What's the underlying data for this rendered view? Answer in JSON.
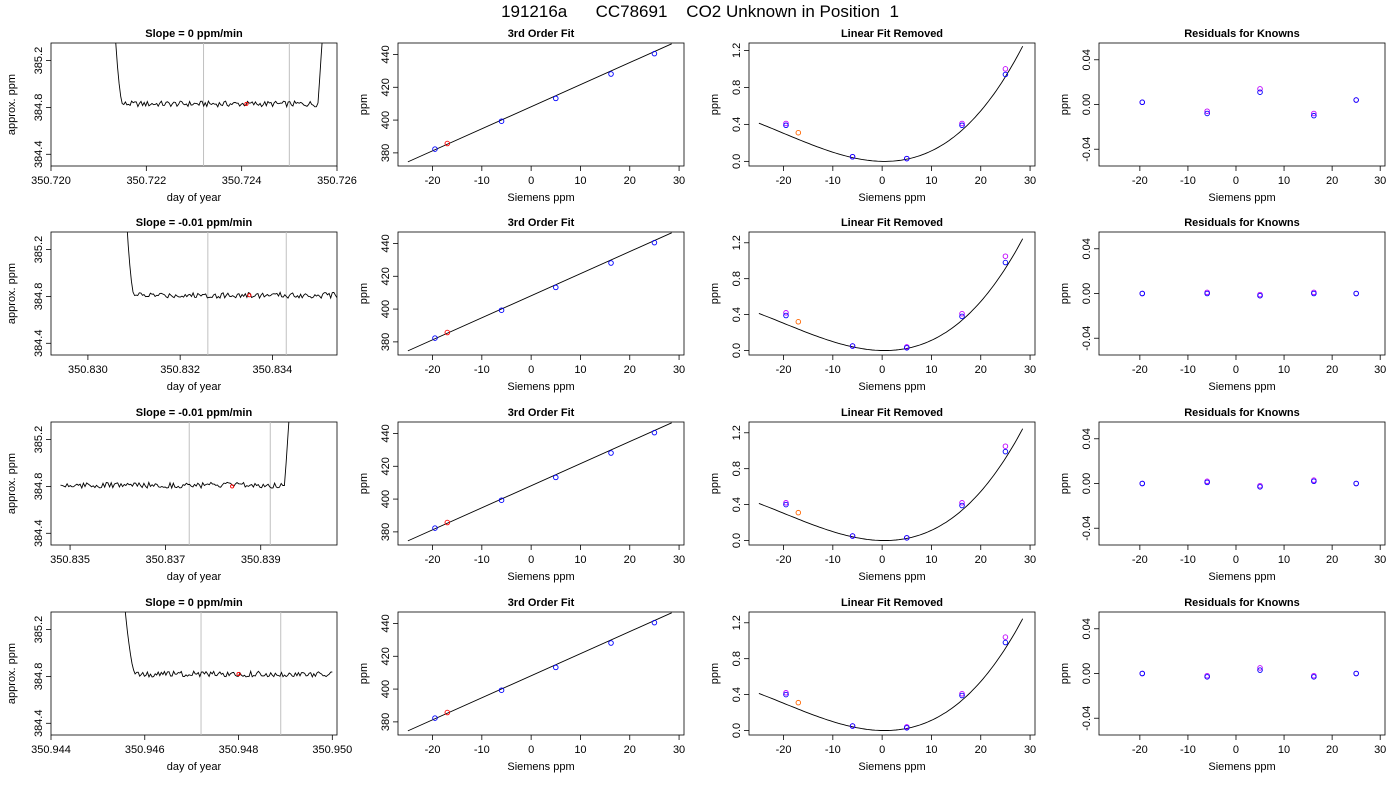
{
  "title": "191216a      CC78691    CO2 Unknown in Position  1",
  "colors": {
    "known_fit": "#0000ff",
    "known_raw": "#c000ff",
    "unknown": "#ff0000",
    "unknown_orange": "#ff6600",
    "window_lines": "#c0c0c0",
    "trace": "#000000"
  },
  "chart_data": [
    {
      "type": "line",
      "title": "Slope =  0  ppm/min",
      "xlabel": "day of year",
      "ylabel": "approx. ppm",
      "xlim": [
        350.72,
        350.726
      ],
      "ylim": [
        384.3,
        385.35
      ],
      "xticks": [
        350.72,
        350.722,
        350.724,
        350.726
      ],
      "xtick_labels": [
        "350.720",
        "350.722",
        "350.724",
        "350.726"
      ],
      "yticks": [
        384.4,
        384.8,
        385.2
      ],
      "ytick_labels": [
        "384.4",
        "384.8",
        "385.2"
      ],
      "trace_start": 350.7211,
      "trace_end": 350.7257,
      "drop_from": 350.7213,
      "drop_to": 350.7215,
      "rise_from": 350.7256,
      "rise_to": 350.7258,
      "baseline": 384.83,
      "window": [
        350.7232,
        350.725
      ],
      "marker": {
        "x": 350.7241,
        "y": 384.83
      }
    },
    {
      "type": "scatter",
      "title": "3rd Order Fit",
      "xlabel": "Siemens ppm",
      "ylabel": "ppm",
      "xlim": [
        -27,
        31
      ],
      "ylim": [
        372,
        447
      ],
      "xticks": [
        -20,
        -10,
        0,
        10,
        20,
        30
      ],
      "xtick_labels": [
        "-20",
        "-10",
        "0",
        "10",
        "20",
        "30"
      ],
      "yticks": [
        380,
        400,
        420,
        440
      ],
      "ytick_labels": [
        "380",
        "400",
        "420",
        "440"
      ],
      "line": {
        "x": [
          -25,
          28.5
        ],
        "y": [
          374.5,
          446.5
        ]
      },
      "known_points": [
        {
          "x": -19.5,
          "y": 382.3
        },
        {
          "x": -6,
          "y": 399.3
        },
        {
          "x": 5,
          "y": 413.2
        },
        {
          "x": 16.2,
          "y": 428.1
        },
        {
          "x": 25,
          "y": 440.5
        }
      ],
      "unknown_points": [
        {
          "x": -17,
          "y": 385.7
        }
      ]
    },
    {
      "type": "line",
      "title": "Linear Fit Removed",
      "xlabel": "Siemens ppm",
      "ylabel": "ppm",
      "xlim": [
        -27,
        31
      ],
      "ylim": [
        -0.05,
        1.28
      ],
      "xticks": [
        -20,
        -10,
        0,
        10,
        20,
        30
      ],
      "xtick_labels": [
        "-20",
        "-10",
        "0",
        "10",
        "20",
        "30"
      ],
      "yticks": [
        0,
        0.4,
        0.8,
        1.2
      ],
      "ytick_labels": [
        "0.0",
        "0.4",
        "0.8",
        "1.2"
      ],
      "curve_coeffs": [
        0,
        -0.00107,
        0.001063,
        1.78e-05
      ],
      "curve_range": [
        -25,
        28.5
      ],
      "known_raw": [
        {
          "x": -19.5,
          "y": 0.41
        },
        {
          "x": -6,
          "y": 0.05
        },
        {
          "x": 5,
          "y": 0.03
        },
        {
          "x": 16.2,
          "y": 0.41
        },
        {
          "x": 25,
          "y": 1.0
        }
      ],
      "known_fit": [
        {
          "x": -19.5,
          "y": 0.39
        },
        {
          "x": -6,
          "y": 0.05
        },
        {
          "x": 5,
          "y": 0.03
        },
        {
          "x": 16.2,
          "y": 0.39
        },
        {
          "x": 25,
          "y": 0.94
        }
      ],
      "unknown_points": [
        {
          "x": -17,
          "y": 0.31
        }
      ]
    },
    {
      "type": "scatter",
      "title": "Residuals for Knowns",
      "xlabel": "Siemens ppm",
      "ylabel": "ppm",
      "xlim": [
        -28.5,
        31
      ],
      "ylim": [
        -0.055,
        0.055
      ],
      "xticks": [
        -20,
        -10,
        0,
        10,
        20,
        30
      ],
      "xtick_labels": [
        "-20",
        "-10",
        "0",
        "10",
        "20",
        "30"
      ],
      "yticks": [
        -0.04,
        0,
        0.04
      ],
      "ytick_labels": [
        "-0.04",
        "0.00",
        "0.04"
      ],
      "known_raw": [
        {
          "x": -19.5,
          "y": 0.002
        },
        {
          "x": -6,
          "y": -0.006
        },
        {
          "x": 5,
          "y": 0.014
        },
        {
          "x": 16.2,
          "y": -0.008
        },
        {
          "x": 25,
          "y": 0.004
        }
      ],
      "known_fit": [
        {
          "x": -19.5,
          "y": 0.002
        },
        {
          "x": -6,
          "y": -0.008
        },
        {
          "x": 5,
          "y": 0.011
        },
        {
          "x": 16.2,
          "y": -0.01
        },
        {
          "x": 25,
          "y": 0.004
        }
      ]
    },
    {
      "type": "line",
      "title": "Slope =  -0.01  ppm/min",
      "xlabel": "day of year",
      "ylabel": "approx. ppm",
      "xlim": [
        350.8292,
        350.8354
      ],
      "ylim": [
        384.3,
        385.35
      ],
      "xticks": [
        350.83,
        350.832,
        350.834
      ],
      "xtick_labels": [
        "350.830",
        "350.832",
        "350.834"
      ],
      "yticks": [
        384.4,
        384.8,
        385.2
      ],
      "ytick_labels": [
        "384.4",
        "384.8",
        "385.2"
      ],
      "trace_start": 350.8306,
      "trace_end": 350.8354,
      "drop_from": 350.8308,
      "drop_to": 350.831,
      "rise_from": 350.8354,
      "rise_to": 350.8354,
      "baseline": 384.81,
      "window": [
        350.8326,
        350.8343
      ],
      "marker": {
        "x": 350.8335,
        "y": 384.81
      }
    },
    {
      "type": "scatter",
      "title": "3rd Order Fit",
      "xlabel": "Siemens ppm",
      "ylabel": "ppm",
      "xlim": [
        -27,
        31
      ],
      "ylim": [
        372,
        447
      ],
      "xticks": [
        -20,
        -10,
        0,
        10,
        20,
        30
      ],
      "xtick_labels": [
        "-20",
        "-10",
        "0",
        "10",
        "20",
        "30"
      ],
      "yticks": [
        380,
        400,
        420,
        440
      ],
      "ytick_labels": [
        "380",
        "400",
        "420",
        "440"
      ],
      "line": {
        "x": [
          -25,
          28.5
        ],
        "y": [
          374.5,
          446.5
        ]
      },
      "known_points": [
        {
          "x": -19.5,
          "y": 382.3
        },
        {
          "x": -6,
          "y": 399.3
        },
        {
          "x": 5,
          "y": 413.2
        },
        {
          "x": 16.2,
          "y": 428.1
        },
        {
          "x": 25,
          "y": 440.5
        }
      ],
      "unknown_points": [
        {
          "x": -17,
          "y": 385.7
        }
      ]
    },
    {
      "type": "line",
      "title": "Linear Fit Removed",
      "xlabel": "Siemens ppm",
      "ylabel": "ppm",
      "xlim": [
        -27,
        31
      ],
      "ylim": [
        -0.05,
        1.32
      ],
      "xticks": [
        -20,
        -10,
        0,
        10,
        20,
        30
      ],
      "xtick_labels": [
        "-20",
        "-10",
        "0",
        "10",
        "20",
        "30"
      ],
      "yticks": [
        0,
        0.4,
        0.8,
        1.2
      ],
      "ytick_labels": [
        "0.0",
        "0.4",
        "0.8",
        "1.2"
      ],
      "curve_coeffs": [
        0,
        -0.00107,
        0.001063,
        1.78e-05
      ],
      "curve_range": [
        -25,
        28.5
      ],
      "known_raw": [
        {
          "x": -19.5,
          "y": 0.42
        },
        {
          "x": -6,
          "y": 0.05
        },
        {
          "x": 5,
          "y": 0.04
        },
        {
          "x": 16.2,
          "y": 0.41
        },
        {
          "x": 25,
          "y": 1.05
        }
      ],
      "known_fit": [
        {
          "x": -19.5,
          "y": 0.39
        },
        {
          "x": -6,
          "y": 0.05
        },
        {
          "x": 5,
          "y": 0.03
        },
        {
          "x": 16.2,
          "y": 0.38
        },
        {
          "x": 25,
          "y": 0.98
        }
      ],
      "unknown_points": [
        {
          "x": -17,
          "y": 0.32
        }
      ]
    },
    {
      "type": "scatter",
      "title": "Residuals for Knowns",
      "xlabel": "Siemens ppm",
      "ylabel": "ppm",
      "xlim": [
        -28.5,
        31
      ],
      "ylim": [
        -0.055,
        0.055
      ],
      "xticks": [
        -20,
        -10,
        0,
        10,
        20,
        30
      ],
      "xtick_labels": [
        "-20",
        "-10",
        "0",
        "10",
        "20",
        "30"
      ],
      "yticks": [
        -0.04,
        0,
        0.04
      ],
      "ytick_labels": [
        "-0.04",
        "0.00",
        "0.04"
      ],
      "known_raw": [
        {
          "x": -19.5,
          "y": 0.0
        },
        {
          "x": -6,
          "y": 0.001
        },
        {
          "x": 5,
          "y": -0.001
        },
        {
          "x": 16.2,
          "y": 0.001
        },
        {
          "x": 25,
          "y": 0.0
        }
      ],
      "known_fit": [
        {
          "x": -19.5,
          "y": 0.0
        },
        {
          "x": -6,
          "y": 0.0
        },
        {
          "x": 5,
          "y": -0.002
        },
        {
          "x": 16.2,
          "y": 0.0
        },
        {
          "x": 25,
          "y": 0.0
        }
      ]
    },
    {
      "type": "line",
      "title": "Slope =  -0.01  ppm/min",
      "xlabel": "day of year",
      "ylabel": "approx. ppm",
      "xlim": [
        350.8346,
        350.8406
      ],
      "ylim": [
        384.3,
        385.35
      ],
      "xticks": [
        350.835,
        350.837,
        350.839
      ],
      "xtick_labels": [
        "350.835",
        "350.837",
        "350.839"
      ],
      "yticks": [
        384.4,
        384.8,
        385.2
      ],
      "ytick_labels": [
        "384.4",
        "384.8",
        "385.2"
      ],
      "trace_start": 350.8348,
      "trace_end": 350.8396,
      "drop_from": 350.8348,
      "drop_to": 350.8348,
      "rise_from": 350.8395,
      "rise_to": 350.8397,
      "baseline": 384.81,
      "window": [
        350.8375,
        350.8392
      ],
      "marker": {
        "x": 350.8384,
        "y": 384.8
      }
    },
    {
      "type": "scatter",
      "title": "3rd Order Fit",
      "xlabel": "Siemens ppm",
      "ylabel": "ppm",
      "xlim": [
        -27,
        31
      ],
      "ylim": [
        372,
        447
      ],
      "xticks": [
        -20,
        -10,
        0,
        10,
        20,
        30
      ],
      "xtick_labels": [
        "-20",
        "-10",
        "0",
        "10",
        "20",
        "30"
      ],
      "yticks": [
        380,
        400,
        420,
        440
      ],
      "ytick_labels": [
        "380",
        "400",
        "420",
        "440"
      ],
      "line": {
        "x": [
          -25,
          28.5
        ],
        "y": [
          374.5,
          446.5
        ]
      },
      "known_points": [
        {
          "x": -19.5,
          "y": 382.3
        },
        {
          "x": -6,
          "y": 399.3
        },
        {
          "x": 5,
          "y": 413.2
        },
        {
          "x": 16.2,
          "y": 428.1
        },
        {
          "x": 25,
          "y": 440.5
        }
      ],
      "unknown_points": [
        {
          "x": -17,
          "y": 385.7
        }
      ]
    },
    {
      "type": "line",
      "title": "Linear Fit Removed",
      "xlabel": "Siemens ppm",
      "ylabel": "ppm",
      "xlim": [
        -27,
        31
      ],
      "ylim": [
        -0.05,
        1.32
      ],
      "xticks": [
        -20,
        -10,
        0,
        10,
        20,
        30
      ],
      "xtick_labels": [
        "-20",
        "-10",
        "0",
        "10",
        "20",
        "30"
      ],
      "yticks": [
        0,
        0.4,
        0.8,
        1.2
      ],
      "ytick_labels": [
        "0.0",
        "0.4",
        "0.8",
        "1.2"
      ],
      "curve_coeffs": [
        0,
        -0.00107,
        0.001063,
        1.78e-05
      ],
      "curve_range": [
        -25,
        28.5
      ],
      "known_raw": [
        {
          "x": -19.5,
          "y": 0.42
        },
        {
          "x": -6,
          "y": 0.05
        },
        {
          "x": 5,
          "y": 0.03
        },
        {
          "x": 16.2,
          "y": 0.42
        },
        {
          "x": 25,
          "y": 1.05
        }
      ],
      "known_fit": [
        {
          "x": -19.5,
          "y": 0.4
        },
        {
          "x": -6,
          "y": 0.05
        },
        {
          "x": 5,
          "y": 0.03
        },
        {
          "x": 16.2,
          "y": 0.39
        },
        {
          "x": 25,
          "y": 0.99
        }
      ],
      "unknown_points": [
        {
          "x": -17,
          "y": 0.31
        }
      ]
    },
    {
      "type": "scatter",
      "title": "Residuals for Knowns",
      "xlabel": "Siemens ppm",
      "ylabel": "ppm",
      "xlim": [
        -28.5,
        31
      ],
      "ylim": [
        -0.055,
        0.055
      ],
      "xticks": [
        -20,
        -10,
        0,
        10,
        20,
        30
      ],
      "xtick_labels": [
        "-20",
        "-10",
        "0",
        "10",
        "20",
        "30"
      ],
      "yticks": [
        -0.04,
        0,
        0.04
      ],
      "ytick_labels": [
        "-0.04",
        "0.00",
        "0.04"
      ],
      "known_raw": [
        {
          "x": -19.5,
          "y": 0.0
        },
        {
          "x": -6,
          "y": 0.002
        },
        {
          "x": 5,
          "y": -0.002
        },
        {
          "x": 16.2,
          "y": 0.003
        },
        {
          "x": 25,
          "y": 0.0
        }
      ],
      "known_fit": [
        {
          "x": -19.5,
          "y": 0.0
        },
        {
          "x": -6,
          "y": 0.001
        },
        {
          "x": 5,
          "y": -0.003
        },
        {
          "x": 16.2,
          "y": 0.002
        },
        {
          "x": 25,
          "y": 0.0
        }
      ]
    },
    {
      "type": "line",
      "title": "Slope =  0  ppm/min",
      "xlabel": "day of year",
      "ylabel": "approx. ppm",
      "xlim": [
        350.944,
        350.9501
      ],
      "ylim": [
        384.3,
        385.35
      ],
      "xticks": [
        350.944,
        350.946,
        350.948,
        350.95
      ],
      "xtick_labels": [
        "350.944",
        "350.946",
        "350.948",
        "350.950"
      ],
      "yticks": [
        384.4,
        384.8,
        385.2
      ],
      "ytick_labels": [
        "384.4",
        "384.8",
        "385.2"
      ],
      "trace_start": 350.9454,
      "trace_end": 350.95,
      "drop_from": 350.9455,
      "drop_to": 350.9458,
      "rise_from": 350.9502,
      "rise_to": 350.9502,
      "baseline": 384.82,
      "window": [
        350.9472,
        350.9489
      ],
      "marker": {
        "x": 350.948,
        "y": 384.82
      }
    },
    {
      "type": "scatter",
      "title": "3rd Order Fit",
      "xlabel": "Siemens ppm",
      "ylabel": "ppm",
      "xlim": [
        -27,
        31
      ],
      "ylim": [
        372,
        447
      ],
      "xticks": [
        -20,
        -10,
        0,
        10,
        20,
        30
      ],
      "xtick_labels": [
        "-20",
        "-10",
        "0",
        "10",
        "20",
        "30"
      ],
      "yticks": [
        380,
        400,
        420,
        440
      ],
      "ytick_labels": [
        "380",
        "400",
        "420",
        "440"
      ],
      "line": {
        "x": [
          -25,
          28.5
        ],
        "y": [
          374.5,
          446.5
        ]
      },
      "known_points": [
        {
          "x": -19.5,
          "y": 382.3
        },
        {
          "x": -6,
          "y": 399.3
        },
        {
          "x": 5,
          "y": 413.2
        },
        {
          "x": 16.2,
          "y": 428.1
        },
        {
          "x": 25,
          "y": 440.5
        }
      ],
      "unknown_points": [
        {
          "x": -17,
          "y": 385.7
        }
      ]
    },
    {
      "type": "line",
      "title": "Linear Fit Removed",
      "xlabel": "Siemens ppm",
      "ylabel": "ppm",
      "xlim": [
        -27,
        31
      ],
      "ylim": [
        -0.05,
        1.32
      ],
      "xticks": [
        -20,
        -10,
        0,
        10,
        20,
        30
      ],
      "xtick_labels": [
        "-20",
        "-10",
        "0",
        "10",
        "20",
        "30"
      ],
      "yticks": [
        0,
        0.4,
        0.8,
        1.2
      ],
      "ytick_labels": [
        "0.0",
        "0.4",
        "0.8",
        "1.2"
      ],
      "curve_coeffs": [
        0,
        -0.00107,
        0.001063,
        1.78e-05
      ],
      "curve_range": [
        -25,
        28.5
      ],
      "known_raw": [
        {
          "x": -19.5,
          "y": 0.42
        },
        {
          "x": -6,
          "y": 0.05
        },
        {
          "x": 5,
          "y": 0.04
        },
        {
          "x": 16.2,
          "y": 0.41
        },
        {
          "x": 25,
          "y": 1.04
        }
      ],
      "known_fit": [
        {
          "x": -19.5,
          "y": 0.4
        },
        {
          "x": -6,
          "y": 0.05
        },
        {
          "x": 5,
          "y": 0.03
        },
        {
          "x": 16.2,
          "y": 0.39
        },
        {
          "x": 25,
          "y": 0.98
        }
      ],
      "unknown_points": [
        {
          "x": -17,
          "y": 0.31
        }
      ]
    },
    {
      "type": "scatter",
      "title": "Residuals for Knowns",
      "xlabel": "Siemens ppm",
      "ylabel": "ppm",
      "xlim": [
        -28.5,
        31
      ],
      "ylim": [
        -0.055,
        0.055
      ],
      "xticks": [
        -20,
        -10,
        0,
        10,
        20,
        30
      ],
      "xtick_labels": [
        "-20",
        "-10",
        "0",
        "10",
        "20",
        "30"
      ],
      "yticks": [
        -0.04,
        0,
        0.04
      ],
      "ytick_labels": [
        "-0.04",
        "0.00",
        "0.04"
      ],
      "known_raw": [
        {
          "x": -19.5,
          "y": 0.0
        },
        {
          "x": -6,
          "y": -0.002
        },
        {
          "x": 5,
          "y": 0.005
        },
        {
          "x": 16.2,
          "y": -0.002
        },
        {
          "x": 25,
          "y": 0.0
        }
      ],
      "known_fit": [
        {
          "x": -19.5,
          "y": 0.0
        },
        {
          "x": -6,
          "y": -0.003
        },
        {
          "x": 5,
          "y": 0.003
        },
        {
          "x": 16.2,
          "y": -0.003
        },
        {
          "x": 25,
          "y": 0.0
        }
      ]
    }
  ]
}
